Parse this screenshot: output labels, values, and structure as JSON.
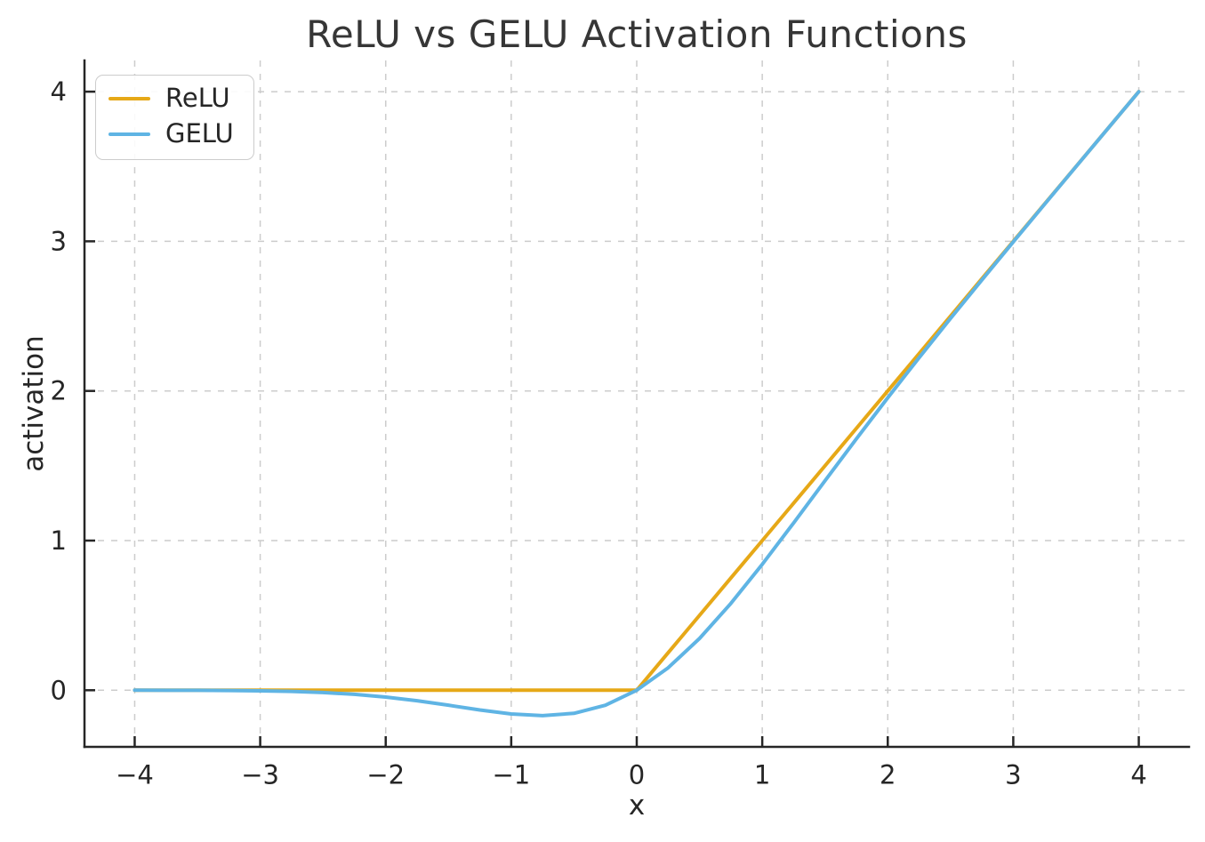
{
  "chart_data": {
    "type": "line",
    "title": "ReLU vs GELU Activation Functions",
    "xlabel": "x",
    "ylabel": "activation",
    "xlim": [
      -4.4,
      4.4
    ],
    "ylim": [
      -0.3785,
      4.2085
    ],
    "x_ticks": [
      -4,
      -3,
      -2,
      -1,
      0,
      1,
      2,
      3,
      4
    ],
    "y_ticks": [
      0,
      1,
      2,
      3,
      4
    ],
    "grid": true,
    "grid_style": "dashed",
    "grid_color": "#cccccc",
    "axis_color": "#262626",
    "legend_position": "upper-left",
    "x": [
      -4,
      -3.75,
      -3.5,
      -3.25,
      -3,
      -2.75,
      -2.5,
      -2.25,
      -2,
      -1.75,
      -1.5,
      -1.25,
      -1,
      -0.75,
      -0.5,
      -0.25,
      0,
      0.25,
      0.5,
      0.75,
      1,
      1.25,
      1.5,
      1.75,
      2,
      2.25,
      2.5,
      2.75,
      3,
      3.25,
      3.5,
      3.75,
      4
    ],
    "series": [
      {
        "name": "ReLU",
        "color": "#E6A817",
        "values": [
          0,
          0,
          0,
          0,
          0,
          0,
          0,
          0,
          0,
          0,
          0,
          0,
          0,
          0,
          0,
          0,
          0,
          0.25,
          0.5,
          0.75,
          1,
          1.25,
          1.5,
          1.75,
          2,
          2.25,
          2.5,
          2.75,
          3,
          3.25,
          3.5,
          3.75,
          4
        ]
      },
      {
        "name": "GELU",
        "color": "#5FB4E4",
        "values": [
          -0.0001,
          -0.0003,
          -0.0008,
          -0.0019,
          -0.004,
          -0.0082,
          -0.0155,
          -0.0275,
          -0.0455,
          -0.0701,
          -0.1002,
          -0.1321,
          -0.1587,
          -0.17,
          -0.1543,
          -0.1003,
          0,
          0.1497,
          0.3457,
          0.58,
          0.8413,
          1.1179,
          1.3998,
          1.6799,
          1.9545,
          2.2225,
          2.4845,
          2.7418,
          2.996,
          3.2481,
          3.4992,
          3.7497,
          3.9999
        ]
      }
    ]
  }
}
